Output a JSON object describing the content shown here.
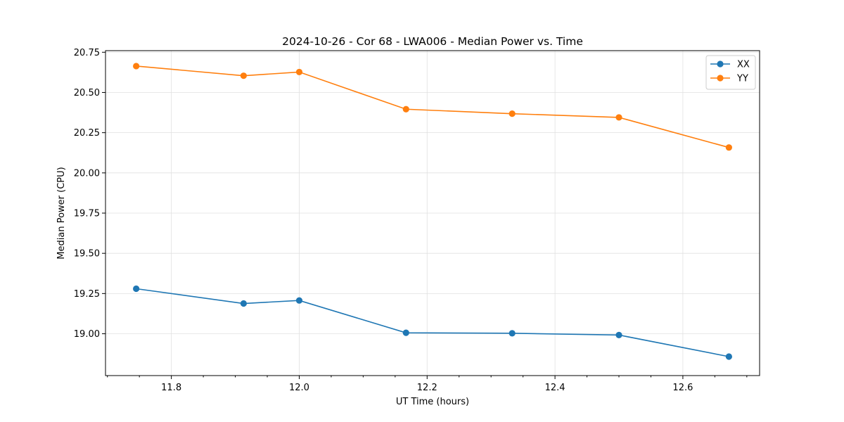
{
  "chart_data": {
    "type": "line",
    "title": "2024-10-26 - Cor 68 - LWA006 - Median Power vs. Time",
    "xlabel": "UT Time (hours)",
    "ylabel": "Median Power (CPU)",
    "xlim": [
      11.697,
      12.72
    ],
    "ylim": [
      18.74,
      20.76
    ],
    "xticks": [
      11.8,
      12.0,
      12.2,
      12.4,
      12.6
    ],
    "xtick_labels": [
      "11.8",
      "12.0",
      "12.2",
      "12.4",
      "12.6"
    ],
    "yticks": [
      19.0,
      19.25,
      19.5,
      19.75,
      20.0,
      20.25,
      20.5,
      20.75
    ],
    "ytick_labels": [
      "19.00",
      "19.25",
      "19.50",
      "19.75",
      "20.00",
      "20.25",
      "20.50",
      "20.75"
    ],
    "grid": true,
    "legend_position": "top-right",
    "x": [
      11.745,
      11.913,
      12.0,
      12.167,
      12.333,
      12.5,
      12.672
    ],
    "series": [
      {
        "name": "XX",
        "color": "#1f77b4",
        "values": [
          19.28,
          19.188,
          19.207,
          19.006,
          19.003,
          18.992,
          18.858
        ]
      },
      {
        "name": "YY",
        "color": "#ff7f0e",
        "values": [
          20.664,
          20.604,
          20.627,
          20.396,
          20.368,
          20.345,
          20.158
        ]
      }
    ]
  }
}
